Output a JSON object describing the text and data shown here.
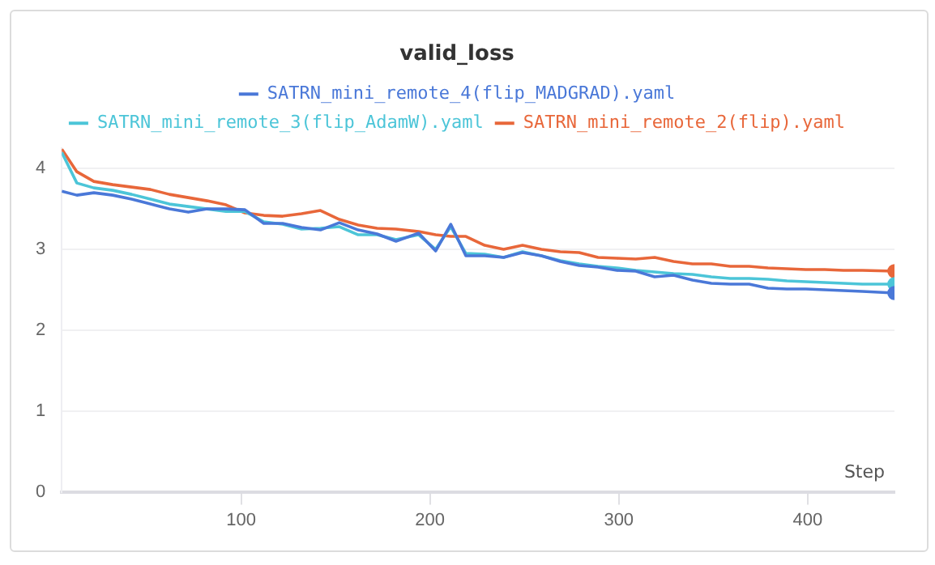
{
  "chart_data": {
    "type": "line",
    "title": "valid_loss",
    "xlabel": "Step",
    "x": [
      5,
      13,
      22,
      32,
      42,
      52,
      62,
      72,
      82,
      92,
      102,
      112,
      122,
      132,
      142,
      152,
      162,
      172,
      182,
      194,
      203,
      211,
      219,
      229,
      239,
      249,
      259,
      269,
      279,
      289,
      299,
      309,
      319,
      329,
      339,
      349,
      359,
      369,
      379,
      389,
      399,
      409,
      419,
      429,
      446
    ],
    "series": [
      {
        "name": "SATRN_mini_remote_4(flip_MADGRAD).yaml",
        "color": "#4a78d8",
        "values": [
          3.72,
          3.67,
          3.7,
          3.67,
          3.62,
          3.56,
          3.5,
          3.46,
          3.5,
          3.5,
          3.49,
          3.32,
          3.32,
          3.27,
          3.24,
          3.33,
          3.24,
          3.19,
          3.1,
          3.2,
          2.98,
          3.31,
          2.92,
          2.92,
          2.9,
          2.96,
          2.92,
          2.85,
          2.8,
          2.78,
          2.74,
          2.73,
          2.66,
          2.68,
          2.62,
          2.58,
          2.57,
          2.57,
          2.52,
          2.51,
          2.51,
          2.5,
          2.49,
          2.48,
          2.46
        ]
      },
      {
        "name": "SATRN_mini_remote_3(flip_AdamW).yaml",
        "color": "#4cc5d8",
        "values": [
          4.2,
          3.82,
          3.76,
          3.73,
          3.68,
          3.62,
          3.56,
          3.53,
          3.5,
          3.47,
          3.47,
          3.34,
          3.31,
          3.25,
          3.26,
          3.28,
          3.18,
          3.18,
          3.12,
          3.18,
          3.0,
          3.28,
          2.95,
          2.94,
          2.9,
          2.97,
          2.92,
          2.86,
          2.82,
          2.79,
          2.77,
          2.74,
          2.72,
          2.7,
          2.69,
          2.66,
          2.64,
          2.64,
          2.63,
          2.61,
          2.6,
          2.59,
          2.58,
          2.57,
          2.57
        ]
      },
      {
        "name": "SATRN_mini_remote_2(flip).yaml",
        "color": "#e8673a",
        "values": [
          4.24,
          3.96,
          3.84,
          3.8,
          3.77,
          3.74,
          3.68,
          3.64,
          3.6,
          3.55,
          3.45,
          3.42,
          3.41,
          3.44,
          3.48,
          3.37,
          3.3,
          3.26,
          3.25,
          3.22,
          3.18,
          3.16,
          3.16,
          3.05,
          3.0,
          3.05,
          3.0,
          2.97,
          2.96,
          2.9,
          2.89,
          2.88,
          2.9,
          2.85,
          2.82,
          2.82,
          2.79,
          2.79,
          2.77,
          2.76,
          2.75,
          2.75,
          2.74,
          2.74,
          2.73
        ]
      }
    ],
    "xlim": [
      5,
      446
    ],
    "xticks": [
      100,
      200,
      300,
      400
    ],
    "ylim": [
      0,
      4.25
    ],
    "yticks": [
      0,
      1,
      2,
      3,
      4
    ],
    "grid": "y",
    "legend": "top",
    "line_style": "solid"
  }
}
